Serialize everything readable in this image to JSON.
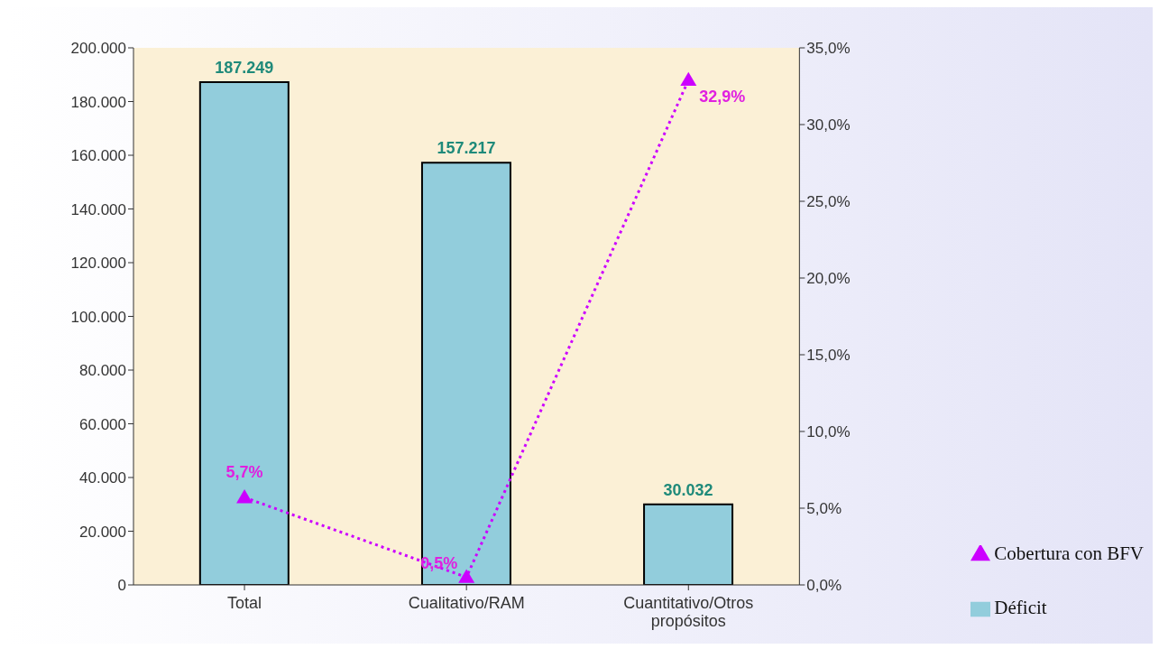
{
  "chart_data": {
    "type": "bar",
    "categories": [
      "Total",
      "Cualitativo/RAM",
      "Cuantitativo/Otros propósitos"
    ],
    "series": [
      {
        "name": "Déficit",
        "color": "#92cddc",
        "values": [
          187249,
          157217,
          30032
        ],
        "value_labels": [
          "187.249",
          "157.217",
          "30.032"
        ]
      },
      {
        "name": "Cobertura con BFV",
        "type": "line",
        "axis": "y2",
        "color": "#cc00ff",
        "values": [
          5.7,
          0.5,
          32.9
        ],
        "value_labels": [
          "5,7%",
          "0,5%",
          "32,9%"
        ]
      }
    ],
    "ylim": [
      0,
      200000
    ],
    "yticks": [
      {
        "value": 0,
        "label": "0"
      },
      {
        "value": 20000,
        "label": "20.000"
      },
      {
        "value": 40000,
        "label": "40.000"
      },
      {
        "value": 60000,
        "label": "60.000"
      },
      {
        "value": 80000,
        "label": "80.000"
      },
      {
        "value": 100000,
        "label": "100.000"
      },
      {
        "value": 120000,
        "label": "120.000"
      },
      {
        "value": 140000,
        "label": "140.000"
      },
      {
        "value": 160000,
        "label": "160.000"
      },
      {
        "value": 180000,
        "label": "180.000"
      },
      {
        "value": 200000,
        "label": "200.000"
      }
    ],
    "y2lim": [
      0,
      35
    ],
    "y2ticks": [
      {
        "value": 0,
        "label": "0,0%"
      },
      {
        "value": 5,
        "label": "5,0%"
      },
      {
        "value": 10,
        "label": "10,0%"
      },
      {
        "value": 15,
        "label": "15,0%"
      },
      {
        "value": 20,
        "label": "20,0%"
      },
      {
        "value": 25,
        "label": "25,0%"
      },
      {
        "value": 30,
        "label": "30,0%"
      },
      {
        "value": 35,
        "label": "35,0%"
      }
    ],
    "marker": "triangle",
    "line_style": "dotted",
    "grid": false,
    "legend": "bottom right"
  }
}
